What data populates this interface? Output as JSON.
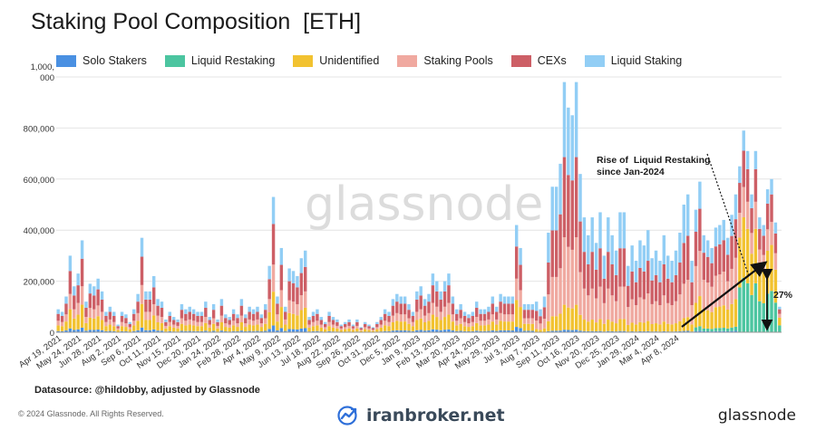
{
  "title": "Staking Pool Composition  [ETH]",
  "watermark": "glassnode",
  "legend": [
    {
      "label": "Solo Stakers",
      "color": "#4a90e2"
    },
    {
      "label": "Liquid Restaking",
      "color": "#4cc5a0"
    },
    {
      "label": "Unidentified",
      "color": "#f2c230"
    },
    {
      "label": "Staking Pools",
      "color": "#f0a9a0"
    },
    {
      "label": "CEXs",
      "color": "#cd5f66"
    },
    {
      "label": "Liquid Staking",
      "color": "#92cef5"
    }
  ],
  "annotation": {
    "line1": "Rise of  Liquid Restaking",
    "line2": "since Jan-2024",
    "percent": "27%"
  },
  "footer": {
    "datasource": "Datasource: @hildobby, adjusted by Glassnode",
    "copyright": "© 2024 Glassnode. All Rights Reserved.",
    "broker": "iranbroker.net",
    "brand": "glassnode"
  },
  "chart_data": {
    "type": "bar",
    "stacked": true,
    "title": "Staking Pool Composition  [ETH]",
    "xlabel": "",
    "ylabel": "",
    "ylim": [
      0,
      1000000
    ],
    "yticks": [
      0,
      200000,
      400000,
      600000,
      800000,
      1000000
    ],
    "ytick_labels": [
      "0",
      "200,000",
      "400,000",
      "600,000",
      "800,000",
      "1,000,\n000"
    ],
    "grid": true,
    "legend_position": "top",
    "x_tick_labels": [
      "Apr 19, 2021",
      "May 24, 2021",
      "Jun 28, 2021",
      "Aug 2, 2021",
      "Sep 6, 2021",
      "Oct 11, 2021",
      "Nov 15, 2021",
      "Dec 20, 2021",
      "Jan 24, 2022",
      "Feb 28, 2022",
      "Apr 4, 2022",
      "May 9, 2022",
      "Jun 13, 2022",
      "Jul 18, 2022",
      "Aug 22, 2022",
      "Sep 26, 2022",
      "Oct 31, 2022",
      "Dec 5, 2022",
      "Jan 9, 2023",
      "Feb 13, 2023",
      "Mar 20, 2023",
      "Apr 24, 2023",
      "May 29, 2023",
      "Jul 3, 2023",
      "Aug 7, 2023",
      "Sep 11, 2023",
      "Oct 16, 2023",
      "Nov 20, 2023",
      "Dec 25, 2023",
      "Jan 29, 2024",
      "Mar 4, 2024",
      "Apr 8, 2024"
    ],
    "x_tick_every": 5,
    "series_names": [
      "Solo Stakers",
      "Liquid Restaking",
      "Unidentified",
      "Staking Pools",
      "CEXs",
      "Liquid Staking"
    ],
    "totals": [
      90000,
      80000,
      140000,
      300000,
      180000,
      230000,
      360000,
      120000,
      190000,
      180000,
      210000,
      160000,
      80000,
      100000,
      80000,
      30000,
      80000,
      70000,
      40000,
      90000,
      150000,
      370000,
      160000,
      160000,
      220000,
      130000,
      120000,
      50000,
      80000,
      60000,
      50000,
      110000,
      90000,
      100000,
      90000,
      80000,
      80000,
      120000,
      60000,
      110000,
      50000,
      130000,
      70000,
      60000,
      90000,
      70000,
      130000,
      70000,
      100000,
      90000,
      100000,
      70000,
      110000,
      260000,
      530000,
      140000,
      330000,
      100000,
      250000,
      240000,
      220000,
      290000,
      320000,
      60000,
      80000,
      90000,
      60000,
      40000,
      80000,
      60000,
      50000,
      30000,
      40000,
      50000,
      30000,
      50000,
      20000,
      40000,
      30000,
      20000,
      40000,
      60000,
      90000,
      80000,
      130000,
      150000,
      140000,
      140000,
      110000,
      80000,
      160000,
      180000,
      130000,
      150000,
      230000,
      200000,
      160000,
      200000,
      230000,
      140000,
      90000,
      110000,
      80000,
      70000,
      80000,
      120000,
      90000,
      90000,
      100000,
      140000,
      100000,
      150000,
      140000,
      140000,
      140000,
      420000,
      330000,
      110000,
      110000,
      110000,
      120000,
      90000,
      140000,
      390000,
      570000,
      570000,
      660000,
      980000,
      880000,
      850000,
      980000,
      620000,
      450000,
      380000,
      450000,
      350000,
      470000,
      300000,
      450000,
      380000,
      320000,
      470000,
      470000,
      260000,
      340000,
      280000,
      360000,
      340000,
      400000,
      290000,
      320000,
      280000,
      380000,
      300000,
      280000,
      320000,
      390000,
      500000,
      540000,
      280000,
      480000,
      590000,
      380000,
      360000,
      330000,
      410000,
      420000,
      440000,
      370000,
      460000,
      540000,
      650000,
      790000,
      710000,
      540000,
      710000,
      450000,
      420000,
      560000,
      600000,
      430000,
      100000
    ],
    "shares": {
      "early": {
        "Solo Stakers": 0.05,
        "Liquid Restaking": 0.0,
        "Unidentified": 0.25,
        "Staking Pools": 0.2,
        "CEXs": 0.3,
        "Liquid Staking": 0.2
      },
      "shapella": {
        "Solo Stakers": 0.01,
        "Liquid Restaking": 0.0,
        "Unidentified": 0.1,
        "Staking Pools": 0.27,
        "CEXs": 0.32,
        "Liquid Staking": 0.3
      },
      "late_2023": {
        "Solo Stakers": 0.01,
        "Liquid Restaking": 0.03,
        "Unidentified": 0.2,
        "Staking Pools": 0.3,
        "CEXs": 0.28,
        "Liquid Staking": 0.18
      },
      "2024": {
        "Solo Stakers": 0.0,
        "Liquid Restaking": 0.27,
        "Unidentified": 0.3,
        "Staking Pools": 0.15,
        "CEXs": 0.18,
        "Liquid Staking": 0.1
      }
    }
  }
}
